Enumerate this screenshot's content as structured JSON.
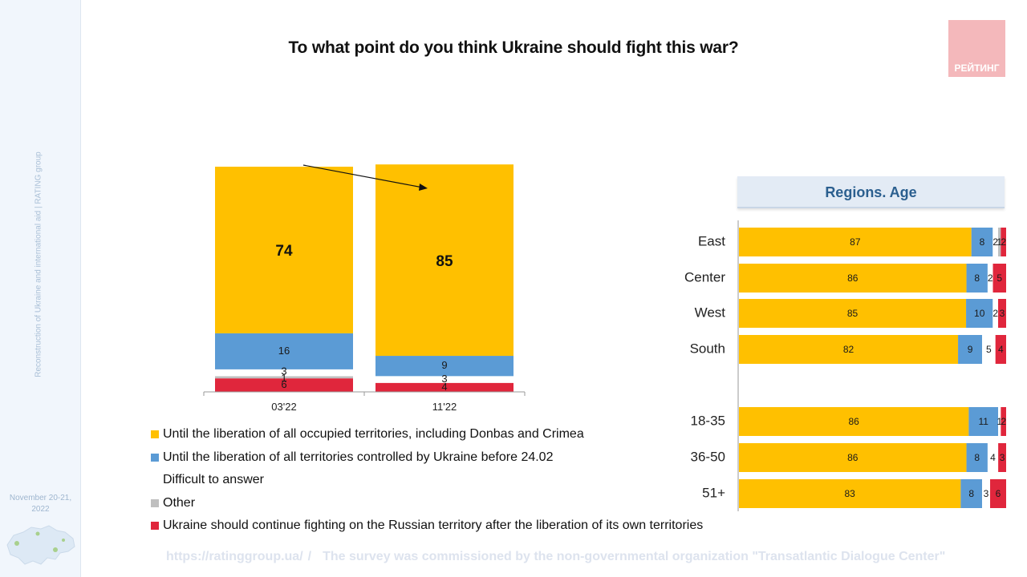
{
  "sidebar": {
    "vertical_text": "Reconstruction of Ukraine and international aid | RATING group",
    "date": "November 20-21, 2022"
  },
  "title": "To what point do you think Ukraine should fight this war?",
  "logo": {
    "text": "РЕЙТИНГ"
  },
  "regions_header": "Regions. Age",
  "legend": [
    {
      "label": "Until the liberation of all occupied territories, including Donbas and Crimea",
      "color": "#ffc000"
    },
    {
      "label": "Until the liberation of all territories controlled by Ukraine before 24.02",
      "color": "#5b9bd5"
    },
    {
      "label": "Difficult to answer",
      "color": ""
    },
    {
      "label": "Other",
      "color": "#bfbfbf"
    },
    {
      "label": "Ukraine should continue fighting on the Russian territory after the liberation of its own territories",
      "color": "#e0263c"
    }
  ],
  "footer": {
    "url": "https://ratinggroup.ua/",
    "note": "The survey was commissioned by the non-governmental organization \"Transatlantic Dialogue Center\""
  },
  "chart_data": [
    {
      "type": "bar",
      "stacked": true,
      "categories": [
        "03'22",
        "11'22"
      ],
      "series": [
        {
          "name": "Ukraine should continue fighting on the Russian territory after the liberation of its own territories",
          "values": [
            6,
            4
          ],
          "color": "#e0263c"
        },
        {
          "name": "Other",
          "values": [
            1,
            0
          ],
          "color": "#bfbfbf"
        },
        {
          "name": "Difficult to answer",
          "values": [
            3,
            3
          ],
          "color": "#ffffff"
        },
        {
          "name": "Until the liberation of all territories controlled by Ukraine before 24.02",
          "values": [
            16,
            9
          ],
          "color": "#5b9bd5"
        },
        {
          "name": "Until the liberation of all occupied territories, including Donbas and Crimea",
          "values": [
            74,
            85
          ],
          "color": "#ffc000"
        }
      ],
      "annotation": "arrow from 74 to 85"
    },
    {
      "type": "bar",
      "orientation": "horizontal",
      "stacked": true,
      "categories": [
        "East",
        "Center",
        "West",
        "South",
        "18-35",
        "36-50",
        "51+"
      ],
      "series": [
        {
          "name": "Until the liberation of all occupied territories, including Donbas and Crimea",
          "values": [
            87,
            86,
            85,
            82,
            86,
            86,
            83
          ],
          "color": "#ffc000"
        },
        {
          "name": "Until the liberation of all territories controlled by Ukraine before 24.02",
          "values": [
            8,
            8,
            10,
            9,
            11,
            8,
            8
          ],
          "color": "#5b9bd5"
        },
        {
          "name": "Difficult to answer",
          "values": [
            2,
            2,
            2,
            5,
            1,
            4,
            3
          ],
          "color": "#ffffff"
        },
        {
          "name": "Other",
          "values": [
            1,
            0,
            0,
            0,
            0,
            0,
            0
          ],
          "color": "#bfbfbf"
        },
        {
          "name": "Ukraine should continue fighting on the Russian territory after the liberation of its own territories",
          "values": [
            2,
            5,
            3,
            4,
            2,
            3,
            6
          ],
          "color": "#e0263c"
        }
      ]
    }
  ]
}
